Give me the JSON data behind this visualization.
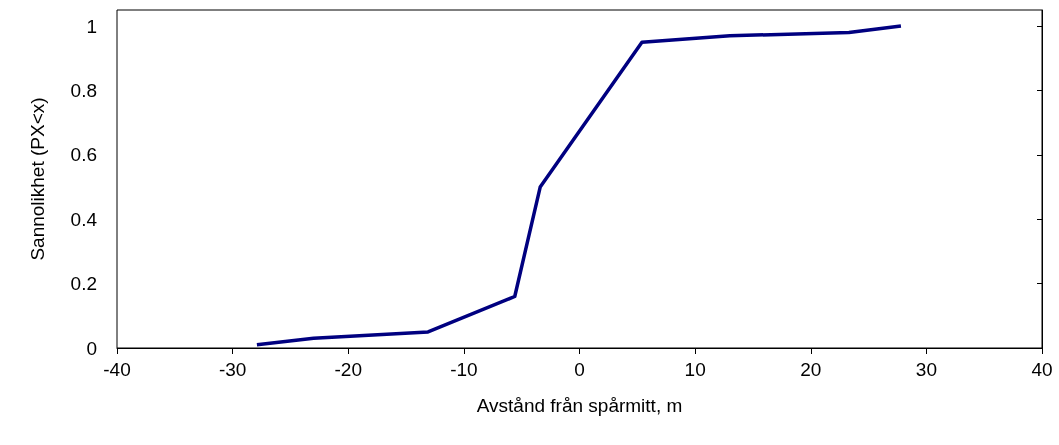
{
  "chart_data": {
    "type": "line",
    "xlabel": "Avstånd från spårmitt, m",
    "ylabel": "Sannolikhet (PX<x)",
    "x": [
      -27.9,
      -23.0,
      -13.1,
      -5.6,
      -3.4,
      5.4,
      13.0,
      23.3,
      27.8
    ],
    "series": [
      {
        "color": "#000080",
        "values": [
          0.01,
          0.03,
          0.05,
          0.16,
          0.5,
          0.95,
          0.97,
          0.98,
          1.0
        ]
      }
    ],
    "xlim": [
      -40,
      40
    ],
    "xticks": [
      -40,
      -30,
      -20,
      -10,
      0,
      10,
      20,
      30,
      40
    ],
    "ylim": [
      0,
      1.05
    ],
    "yticks": [
      0,
      0.2,
      0.4,
      0.6,
      0.8,
      1
    ],
    "grid": false,
    "marker": "none",
    "line_style": "solid"
  }
}
